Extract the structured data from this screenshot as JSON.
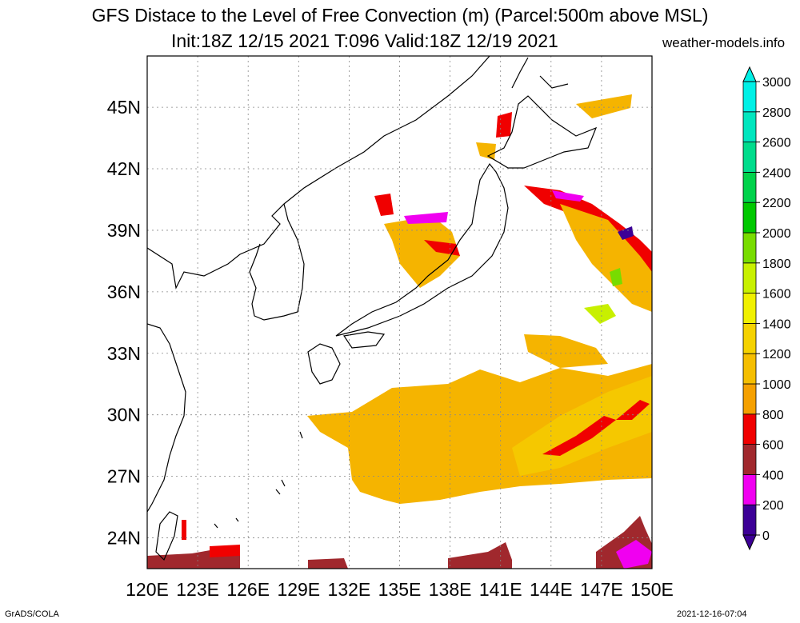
{
  "title": "GFS Distace to the Level of Free Convection (m) (Parcel:500m above MSL)",
  "subtitle": "Init:18Z 12/15 2021 T:096 Valid:18Z 12/19 2021",
  "credit": "weather-models.info",
  "footer_left": "GrADS/COLA",
  "footer_right": "2021-12-16-07:04",
  "map": {
    "lon_range": [
      120,
      150
    ],
    "lat_range": [
      22.5,
      47.5
    ],
    "lat_ticks": [
      "24N",
      "27N",
      "30N",
      "33N",
      "36N",
      "39N",
      "42N",
      "45N"
    ],
    "lon_ticks": [
      "120E",
      "123E",
      "126E",
      "129E",
      "132E",
      "135E",
      "138E",
      "141E",
      "144E",
      "147E",
      "150E"
    ],
    "grid": true
  },
  "colorbar": {
    "labels": [
      "0",
      "200",
      "400",
      "600",
      "800",
      "1000",
      "1200",
      "1400",
      "1600",
      "1800",
      "2000",
      "2200",
      "2400",
      "2600",
      "2800",
      "3000"
    ],
    "colors": [
      "#3c0096",
      "#f000f0",
      "#a0282d",
      "#f00000",
      "#f5a000",
      "#f5be00",
      "#f5d200",
      "#f0f000",
      "#c8f000",
      "#78dc00",
      "#00c800",
      "#00d24b",
      "#00dc8c",
      "#00e6be",
      "#00f0e6"
    ]
  }
}
